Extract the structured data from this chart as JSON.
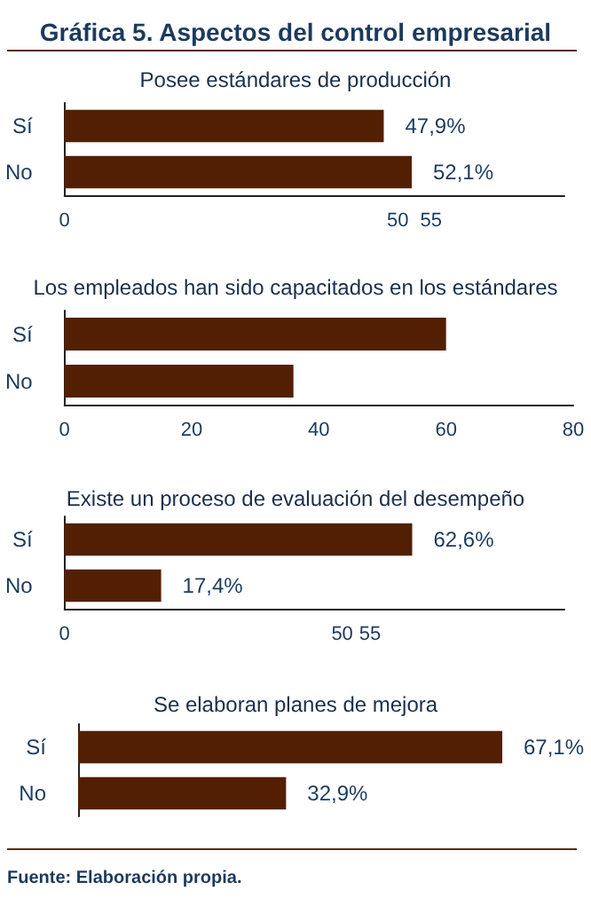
{
  "chart_data": [
    {
      "type": "bar",
      "orientation": "horizontal",
      "title": "Gráfica 5. Aspectos del control empresarial",
      "subtitle": "Posee estándares de producción",
      "categories": [
        "Sí",
        "No"
      ],
      "values": [
        47.9,
        52.1
      ],
      "value_labels": [
        "47,9%",
        "52,1%"
      ],
      "color": "#531f02",
      "xlim": [
        0,
        75
      ],
      "xticks": [
        0,
        50,
        55
      ]
    },
    {
      "type": "bar",
      "orientation": "horizontal",
      "title": "Los empleados han sido capacitados en los estándares",
      "categories": [
        "Sí",
        "No"
      ],
      "values": [
        60,
        36
      ],
      "color": "#531f02",
      "xlim": [
        0,
        80
      ],
      "xticks": [
        0,
        20,
        40,
        60,
        80
      ]
    },
    {
      "type": "bar",
      "orientation": "horizontal",
      "title": "Existe un proceso de evaluación del desempeño",
      "categories": [
        "Sí",
        "No"
      ],
      "values": [
        62.6,
        17.4
      ],
      "value_labels": [
        "62,6%",
        "17,4%"
      ],
      "color": "#531f02",
      "xlim": [
        0,
        90
      ],
      "xticks": [
        0,
        50,
        55
      ]
    },
    {
      "type": "bar",
      "orientation": "horizontal",
      "title": "Se elaboran planes de mejora",
      "categories": [
        "Sí",
        "No"
      ],
      "values": [
        67.1,
        32.9
      ],
      "value_labels": [
        "67,1%",
        "32,9%"
      ],
      "color": "#531f02",
      "tick_labels": "y",
      "annotations": [
        "Fuente: Elaboración propia."
      ]
    }
  ]
}
